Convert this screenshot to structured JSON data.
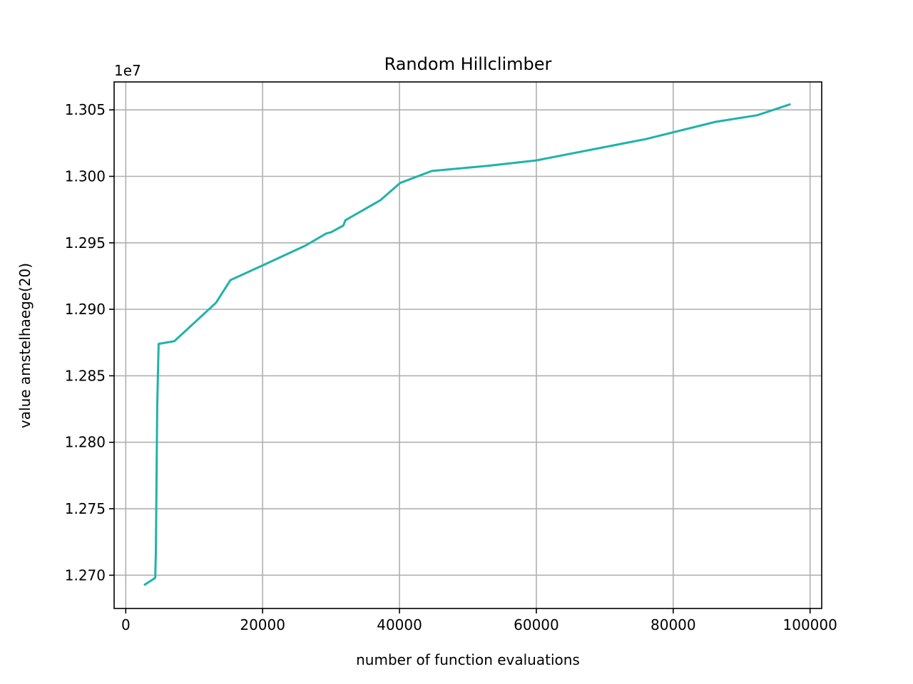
{
  "chart_data": {
    "type": "line",
    "title": "Random Hillclimber",
    "xlabel": "number of function evaluations",
    "ylabel": "value amstelhaege(20)",
    "y_offset_label": "1e7",
    "xlim": [
      -1700,
      101700
    ],
    "ylim": [
      1.2675,
      1.3071
    ],
    "x_ticks": [
      0,
      20000,
      40000,
      60000,
      80000,
      100000
    ],
    "x_tick_labels": [
      "0",
      "20000",
      "40000",
      "60000",
      "80000",
      "100000"
    ],
    "y_ticks": [
      1.27,
      1.275,
      1.28,
      1.285,
      1.29,
      1.295,
      1.3,
      1.305
    ],
    "y_tick_labels": [
      "1.270",
      "1.275",
      "1.280",
      "1.285",
      "1.290",
      "1.295",
      "1.300",
      "1.305"
    ],
    "grid": true,
    "colors": {
      "line": "#20b2aa",
      "grid": "#b0b0b0",
      "axes": "#000000"
    },
    "series": [
      {
        "x": [
          2800,
          4300,
          4400,
          4500,
          4600,
          4800,
          7100,
          13200,
          15300,
          20000,
          26300,
          29300,
          30000,
          31800,
          32100,
          37200,
          40100,
          44700,
          53000,
          60000,
          76000,
          86200,
          92300,
          97000
        ],
        "y": [
          1.2693,
          1.2698,
          1.2717,
          1.2774,
          1.2827,
          1.2874,
          1.2876,
          1.2905,
          1.2922,
          1.2933,
          1.2948,
          1.2957,
          1.2958,
          1.2963,
          1.2967,
          1.2982,
          1.2995,
          1.3004,
          1.3008,
          1.3012,
          1.3028,
          1.3041,
          1.3046,
          1.3054
        ]
      }
    ]
  }
}
